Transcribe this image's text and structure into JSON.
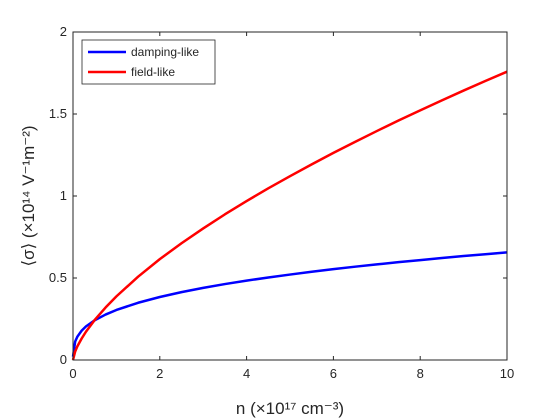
{
  "chart_data": {
    "type": "line",
    "xlabel": "n (×10¹⁷ cm⁻³)",
    "ylabel": "⟨σ⟩ (×10¹⁴ V⁻¹m⁻²)",
    "xlim": [
      0,
      10
    ],
    "ylim": [
      0,
      2
    ],
    "xticks": [
      "0",
      "2",
      "4",
      "6",
      "8",
      "10"
    ],
    "yticks": [
      "0",
      "0.5",
      "1",
      "1.5",
      "2"
    ],
    "grid": false,
    "legend_position": "top-left",
    "x": [
      0,
      0.05,
      0.1,
      0.2,
      0.3,
      0.5,
      0.75,
      1,
      1.5,
      2,
      2.5,
      3,
      3.5,
      4,
      4.5,
      5,
      5.5,
      6,
      6.5,
      7,
      7.5,
      8,
      8.5,
      9,
      9.5,
      10
    ],
    "series": [
      {
        "name": "damping-like",
        "color": "#0000ff",
        "values": [
          0.02,
          0.113,
          0.142,
          0.179,
          0.205,
          0.242,
          0.277,
          0.305,
          0.349,
          0.384,
          0.414,
          0.44,
          0.463,
          0.484,
          0.503,
          0.521,
          0.538,
          0.554,
          0.569,
          0.583,
          0.597,
          0.609,
          0.622,
          0.634,
          0.645,
          0.656
        ]
      },
      {
        "name": "field-like",
        "color": "#ff0000",
        "values": [
          0,
          0.052,
          0.083,
          0.131,
          0.173,
          0.244,
          0.32,
          0.388,
          0.508,
          0.615,
          0.712,
          0.802,
          0.888,
          0.969,
          1.047,
          1.121,
          1.193,
          1.263,
          1.33,
          1.396,
          1.46,
          1.522,
          1.583,
          1.643,
          1.701,
          1.758
        ]
      }
    ]
  }
}
